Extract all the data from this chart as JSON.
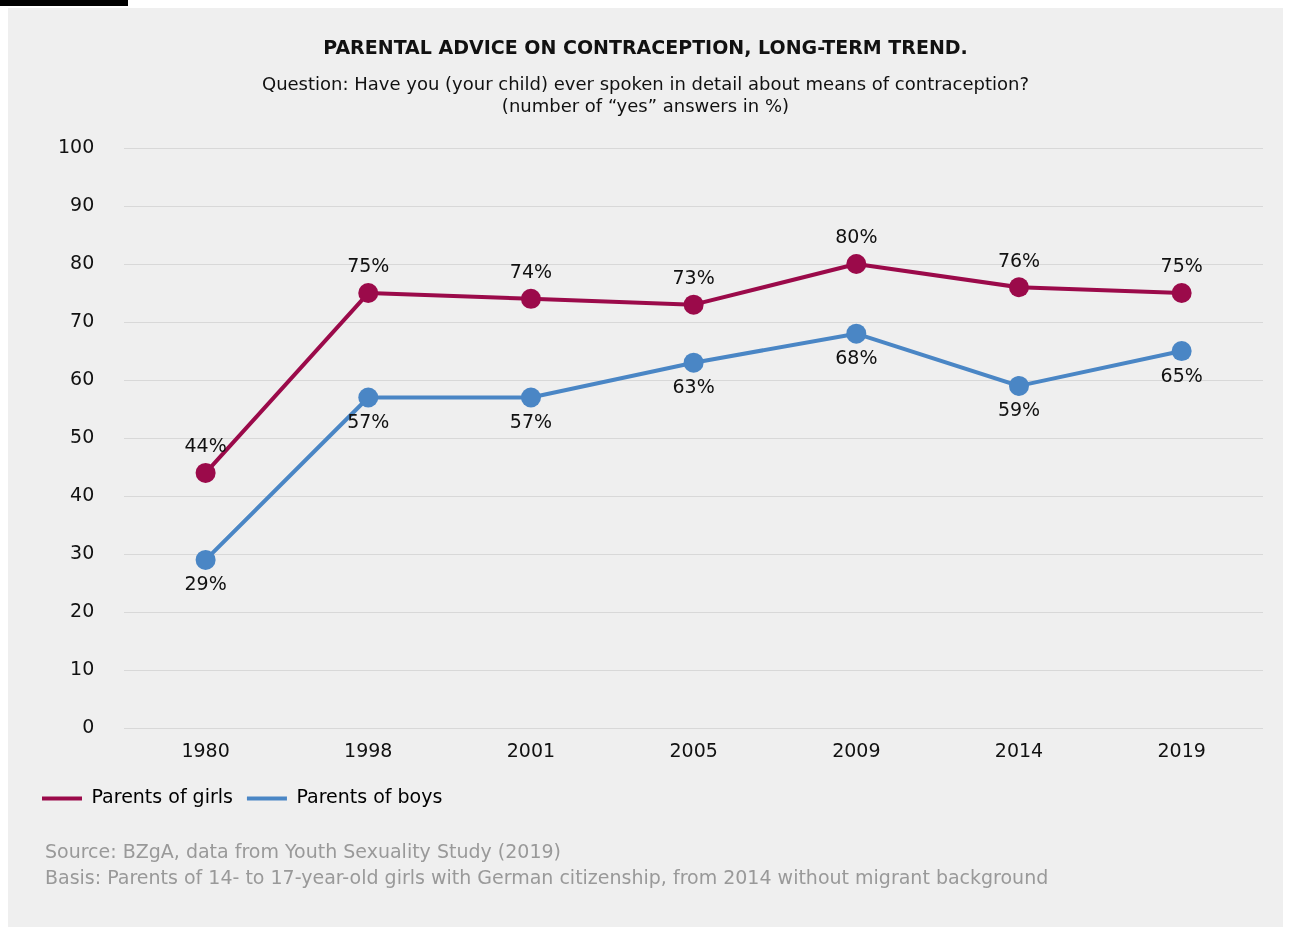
{
  "chart_data": {
    "type": "line",
    "title": "PARENTAL ADVICE ON CONTRACEPTION, LONG-TERM TREND.",
    "subtitle": "Question: Have you (your child) ever spoken in detail about means of contraception?\n(number of “yes” answers in %)",
    "categories": [
      "1980",
      "1998",
      "2001",
      "2005",
      "2009",
      "2014",
      "2019"
    ],
    "series": [
      {
        "name": "Parents of girls",
        "color": "#9b0a4a",
        "values": [
          44,
          75,
          74,
          73,
          80,
          76,
          75
        ],
        "value_labels": [
          "44%",
          "75%",
          "74%",
          "73%",
          "80%",
          "76%",
          "75%"
        ]
      },
      {
        "name": "Parents of boys",
        "color": "#4a86c5",
        "values": [
          29,
          57,
          57,
          63,
          68,
          59,
          65
        ],
        "value_labels": [
          "29%",
          "57%",
          "57%",
          "63%",
          "68%",
          "59%",
          "65%"
        ]
      }
    ],
    "ylim": [
      0,
      100
    ],
    "yticks": [
      0,
      10,
      20,
      30,
      40,
      50,
      60,
      70,
      80,
      90,
      100
    ],
    "grid": "y",
    "legend": "bottom left",
    "marker": "circle",
    "line_style": "solid",
    "annotations": [
      "Source: BZgA, data from Youth Sexuality Study (2019)",
      "Basis: Parents of 14- to 17-year-old girls with German citizenship, from 2014 without migrant background"
    ]
  }
}
